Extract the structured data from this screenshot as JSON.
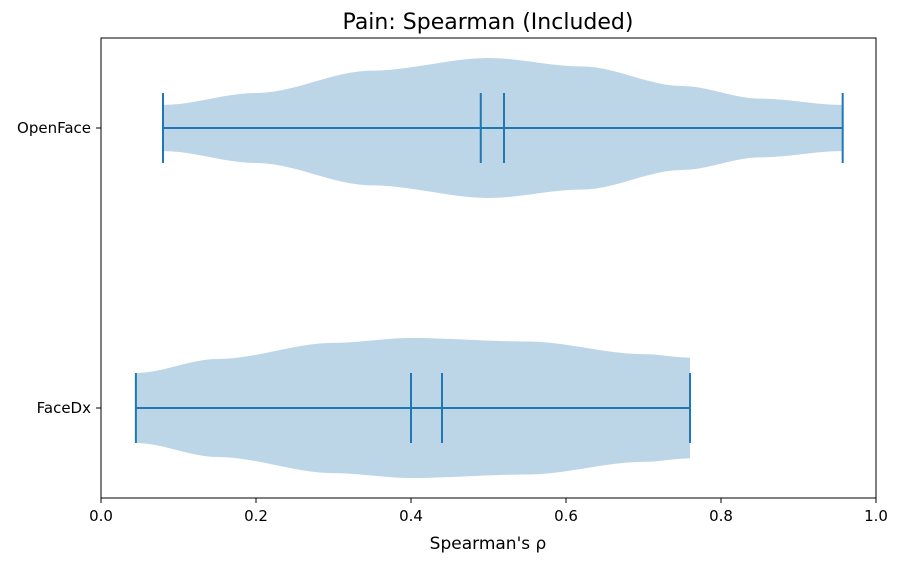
{
  "chart_data": {
    "type": "violin",
    "orientation": "horizontal",
    "title": "Pain: Spearman (Included)",
    "xlabel": "Spearman's ρ",
    "ylabel": "",
    "xlim": [
      0.0,
      1.0
    ],
    "xticks": [
      "0.0",
      "0.2",
      "0.4",
      "0.6",
      "0.8",
      "1.0"
    ],
    "grid": false,
    "colors": {
      "body": "#bcd6e8",
      "lines": "#1f77b4"
    },
    "categories": [
      "OpenFace",
      "FaceDx"
    ],
    "series": [
      {
        "category": "OpenFace",
        "min": 0.08,
        "max": 0.957,
        "median": 0.49,
        "mean": 0.52,
        "density_profile": [
          [
            0.08,
            0.33
          ],
          [
            0.2,
            0.5
          ],
          [
            0.35,
            0.82
          ],
          [
            0.5,
            1.0
          ],
          [
            0.62,
            0.88
          ],
          [
            0.75,
            0.6
          ],
          [
            0.85,
            0.42
          ],
          [
            0.957,
            0.33
          ]
        ]
      },
      {
        "category": "FaceDx",
        "min": 0.045,
        "max": 0.76,
        "median": 0.4,
        "mean": 0.44,
        "density_profile": [
          [
            0.045,
            0.5
          ],
          [
            0.15,
            0.7
          ],
          [
            0.3,
            0.93
          ],
          [
            0.4,
            1.0
          ],
          [
            0.55,
            0.95
          ],
          [
            0.7,
            0.77
          ],
          [
            0.76,
            0.72
          ]
        ]
      }
    ]
  }
}
